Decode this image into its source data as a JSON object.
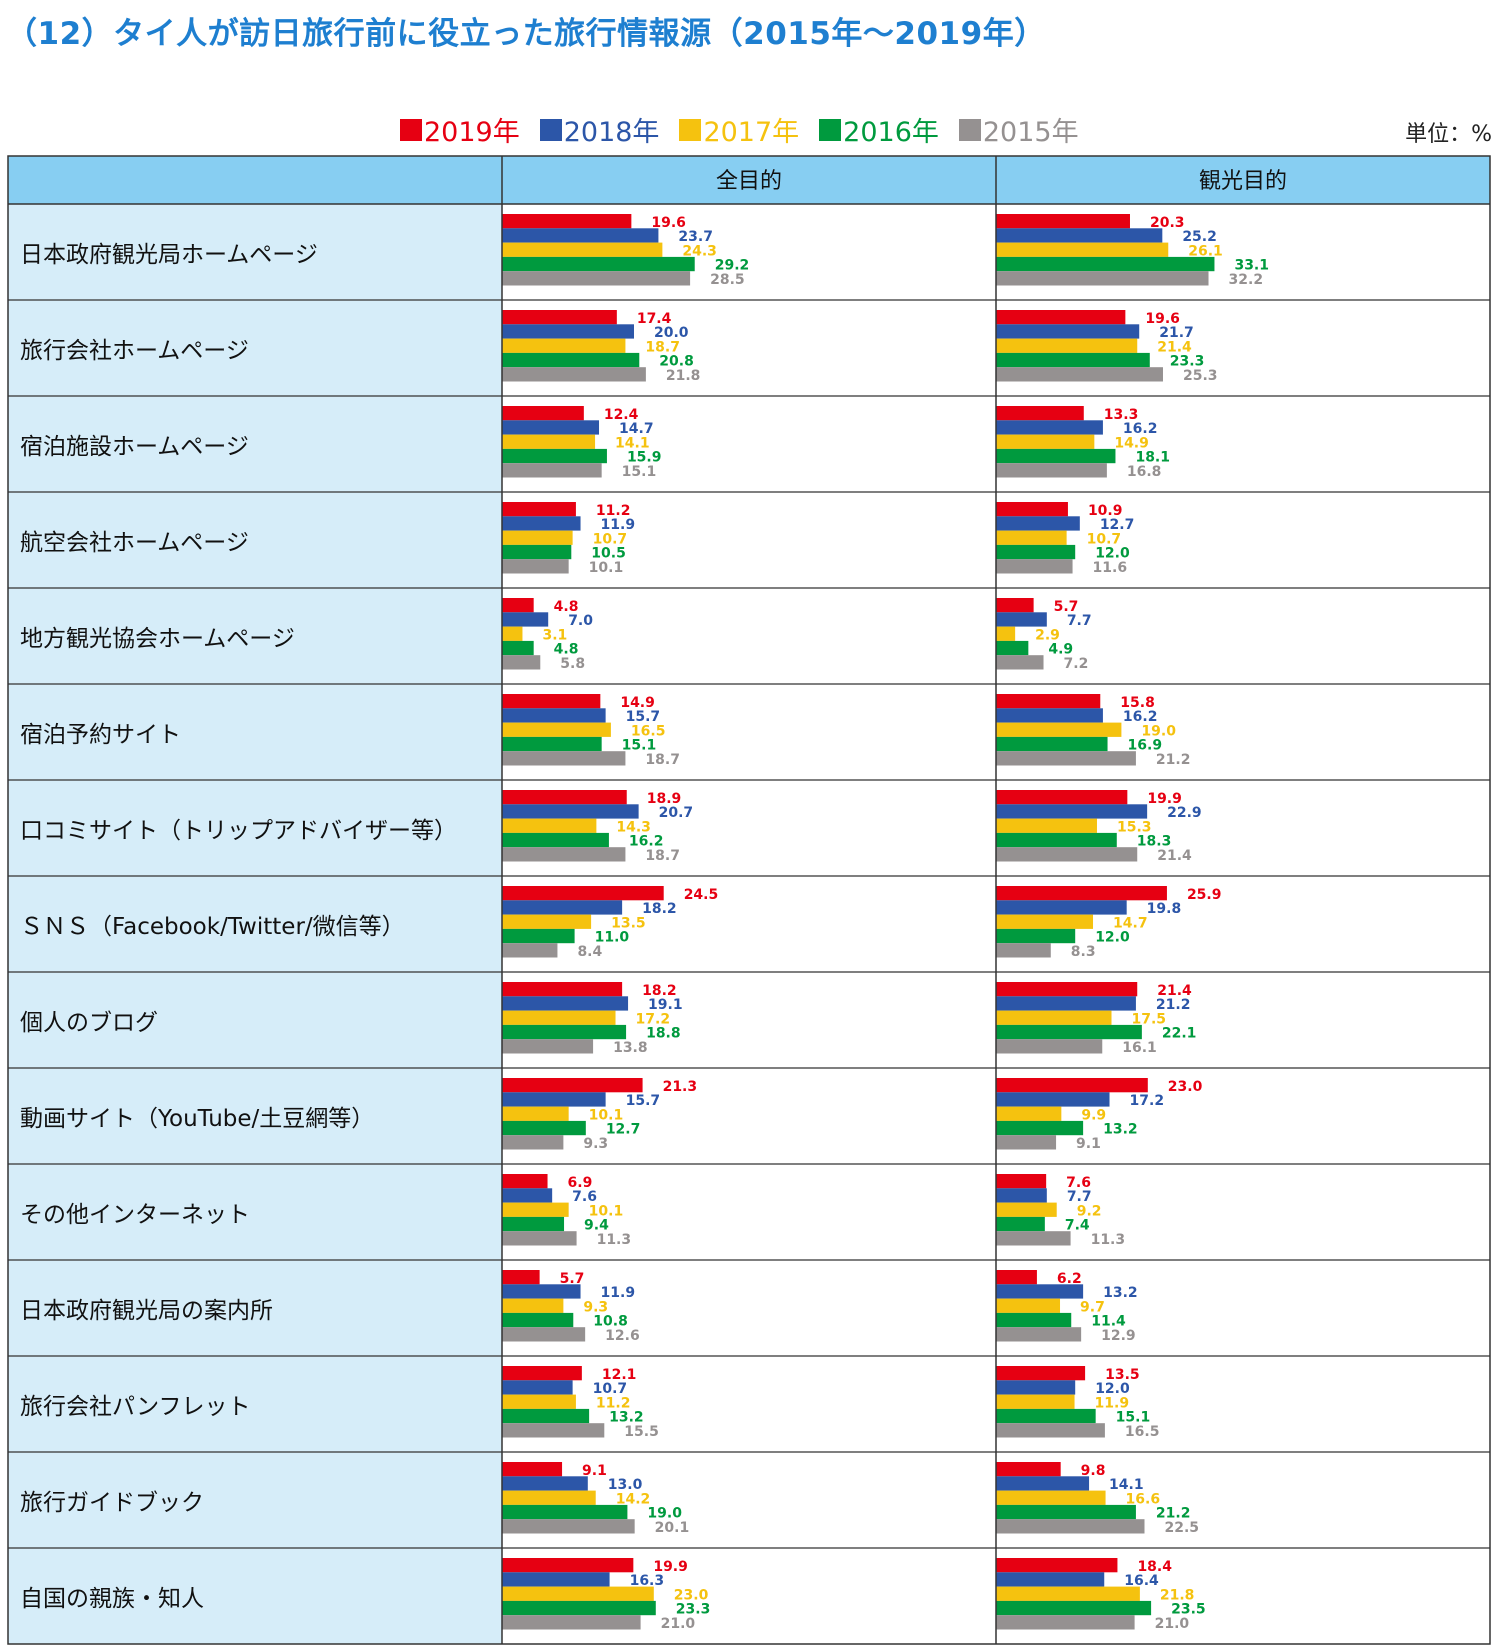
{
  "title": "（12）タイ人が訪日旅行前に役立った旅行情報源（2015年～2019年）",
  "unit_label": "単位：%",
  "colors": {
    "2019年": "#e60012",
    "2018年": "#2c56a8",
    "2017年": "#f5c20f",
    "2016年": "#009a3e",
    "2015年": "#959191",
    "header_bg": "#87cef2",
    "label_bg": "#d6edf9"
  },
  "chart_data": {
    "type": "bar",
    "orientation": "horizontal",
    "title": "（12）タイ人が訪日旅行前に役立った旅行情報源（2015年～2019年）",
    "unit": "%",
    "xlim": [
      0,
      55
    ],
    "panels": [
      "全目的",
      "観光目的"
    ],
    "series": [
      "2019年",
      "2018年",
      "2017年",
      "2016年",
      "2015年"
    ],
    "legend": "top-center",
    "categories": [
      "日本政府観光局ホームページ",
      "旅行会社ホームページ",
      "宿泊施設ホームページ",
      "航空会社ホームページ",
      "地方観光協会ホームページ",
      "宿泊予約サイト",
      "口コミサイト（トリップアドバイザー等）",
      "ＳＮＳ（Facebook/Twitter/微信等）",
      "個人のブログ",
      "動画サイト（YouTube/土豆網等）",
      "その他インターネット",
      "日本政府観光局の案内所",
      "旅行会社パンフレット",
      "旅行ガイドブック",
      "自国の親族・知人"
    ],
    "values": {
      "全目的": [
        [
          19.6,
          23.7,
          24.3,
          29.2,
          28.5
        ],
        [
          17.4,
          20.0,
          18.7,
          20.8,
          21.8
        ],
        [
          12.4,
          14.7,
          14.1,
          15.9,
          15.1
        ],
        [
          11.2,
          11.9,
          10.7,
          10.5,
          10.1
        ],
        [
          4.8,
          7.0,
          3.1,
          4.8,
          5.8
        ],
        [
          14.9,
          15.7,
          16.5,
          15.1,
          18.7
        ],
        [
          18.9,
          20.7,
          14.3,
          16.2,
          18.7
        ],
        [
          24.5,
          18.2,
          13.5,
          11.0,
          8.4
        ],
        [
          18.2,
          19.1,
          17.2,
          18.8,
          13.8
        ],
        [
          21.3,
          15.7,
          10.1,
          12.7,
          9.3
        ],
        [
          6.9,
          7.6,
          10.1,
          9.4,
          11.3
        ],
        [
          5.7,
          11.9,
          9.3,
          10.8,
          12.6
        ],
        [
          12.1,
          10.7,
          11.2,
          13.2,
          15.5
        ],
        [
          9.1,
          13.0,
          14.2,
          19.0,
          20.1
        ],
        [
          19.9,
          16.3,
          23.0,
          23.3,
          21.0
        ]
      ],
      "観光目的": [
        [
          20.3,
          25.2,
          26.1,
          33.1,
          32.2
        ],
        [
          19.6,
          21.7,
          21.4,
          23.3,
          25.3
        ],
        [
          13.3,
          16.2,
          14.9,
          18.1,
          16.8
        ],
        [
          10.9,
          12.7,
          10.7,
          12.0,
          11.6
        ],
        [
          5.7,
          7.7,
          2.9,
          4.9,
          7.2
        ],
        [
          15.8,
          16.2,
          19.0,
          16.9,
          21.2
        ],
        [
          19.9,
          22.9,
          15.3,
          18.3,
          21.4
        ],
        [
          25.9,
          19.8,
          14.7,
          12.0,
          8.3
        ],
        [
          21.4,
          21.2,
          17.5,
          22.1,
          16.1
        ],
        [
          23.0,
          17.2,
          9.9,
          13.2,
          9.1
        ],
        [
          7.6,
          7.7,
          9.2,
          7.4,
          11.3
        ],
        [
          6.2,
          13.2,
          9.7,
          11.4,
          12.9
        ],
        [
          13.5,
          12.0,
          11.9,
          15.1,
          16.5
        ],
        [
          9.8,
          14.1,
          16.6,
          21.2,
          22.5
        ],
        [
          18.4,
          16.4,
          21.8,
          23.5,
          21.0
        ]
      ]
    }
  }
}
